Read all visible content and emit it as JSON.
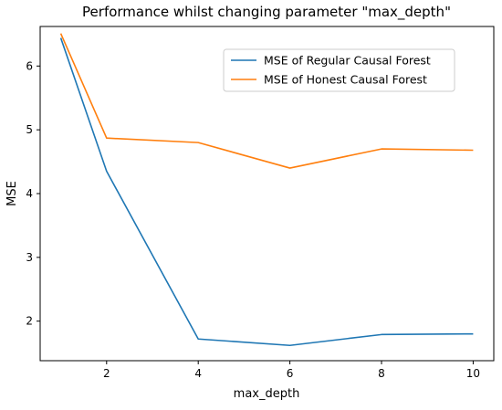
{
  "chart_data": {
    "type": "line",
    "title": "Performance whilst changing parameter \"max_depth\"",
    "xlabel": "max_depth",
    "ylabel": "MSE",
    "x": [
      1,
      2,
      4,
      6,
      8,
      10
    ],
    "xlim": [
      0.55,
      10.45
    ],
    "ylim": [
      1.38,
      6.62
    ],
    "xticks": [
      2,
      4,
      6,
      8,
      10
    ],
    "yticks": [
      2,
      3,
      4,
      5,
      6
    ],
    "grid": false,
    "legend_position": "top-right",
    "series": [
      {
        "name": "MSE of Regular Causal Forest",
        "color": "#1f77b4",
        "values": [
          6.44,
          4.35,
          1.72,
          1.62,
          1.79,
          1.8
        ]
      },
      {
        "name": "MSE of Honest Causal Forest",
        "color": "#ff7f0e",
        "values": [
          6.51,
          4.87,
          4.8,
          4.4,
          4.7,
          4.68
        ]
      }
    ]
  }
}
